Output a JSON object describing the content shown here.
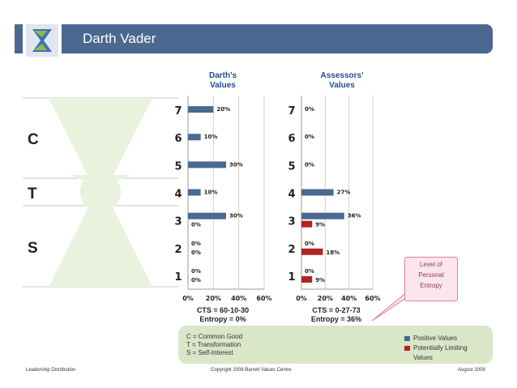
{
  "header": {
    "title": "Darth Vader"
  },
  "diagram": {
    "labels": [
      "C",
      "T",
      "S"
    ]
  },
  "charts": [
    {
      "title_line1": "Darth's",
      "title_line2": "Values",
      "levels": [
        "7",
        "6",
        "5",
        "4",
        "3",
        "2",
        "1"
      ],
      "rows": [
        {
          "level": "7",
          "pos": 20,
          "lim": null,
          "pos_label": "20%",
          "lim_label": ""
        },
        {
          "level": "6",
          "pos": 10,
          "lim": null,
          "pos_label": "10%",
          "lim_label": ""
        },
        {
          "level": "5",
          "pos": 30,
          "lim": null,
          "pos_label": "30%",
          "lim_label": ""
        },
        {
          "level": "4",
          "pos": 10,
          "lim": null,
          "pos_label": "10%",
          "lim_label": ""
        },
        {
          "level": "3",
          "pos": 30,
          "lim": 0,
          "pos_label": "30%",
          "lim_label": "0%"
        },
        {
          "level": "2",
          "pos": 0,
          "lim": 0,
          "pos_label": "0%",
          "lim_label": "0%"
        },
        {
          "level": "1",
          "pos": 0,
          "lim": 0,
          "pos_label": "0%",
          "lim_label": "0%"
        }
      ],
      "ticks": [
        "0%",
        "20%",
        "40%",
        "60%"
      ],
      "cts_line1": "CTS = 60-10-30",
      "cts_line2": "Entropy = 0%"
    },
    {
      "title_line1": "Assessors'",
      "title_line2": "Values",
      "levels": [
        "7",
        "6",
        "5",
        "4",
        "3",
        "2",
        "1"
      ],
      "rows": [
        {
          "level": "7",
          "pos": 0,
          "lim": null,
          "pos_label": "0%",
          "lim_label": ""
        },
        {
          "level": "6",
          "pos": 0,
          "lim": null,
          "pos_label": "0%",
          "lim_label": ""
        },
        {
          "level": "5",
          "pos": 0,
          "lim": null,
          "pos_label": "0%",
          "lim_label": ""
        },
        {
          "level": "4",
          "pos": 27,
          "lim": null,
          "pos_label": "27%",
          "lim_label": ""
        },
        {
          "level": "3",
          "pos": 36,
          "lim": 9,
          "pos_label": "36%",
          "lim_label": "9%"
        },
        {
          "level": "2",
          "pos": 0,
          "lim": 18,
          "pos_label": "0%",
          "lim_label": "18%"
        },
        {
          "level": "1",
          "pos": 0,
          "lim": 9,
          "pos_label": "0%",
          "lim_label": "9%"
        }
      ],
      "ticks": [
        "0%",
        "20%",
        "40%",
        "60%"
      ],
      "cts_line1": "CTS = 0-27-73",
      "cts_line2": "Entropy = 36%"
    }
  ],
  "chart_data": [
    {
      "type": "bar",
      "title": "Darth's Values",
      "categories": [
        "7",
        "6",
        "5",
        "4",
        "3",
        "2",
        "1"
      ],
      "series": [
        {
          "name": "Positive Values",
          "values": [
            20,
            10,
            30,
            10,
            30,
            0,
            0
          ]
        },
        {
          "name": "Potentially Limiting Values",
          "values": [
            null,
            null,
            null,
            null,
            0,
            0,
            0
          ]
        }
      ],
      "xlim": [
        0,
        60
      ]
    },
    {
      "type": "bar",
      "title": "Assessors' Values",
      "categories": [
        "7",
        "6",
        "5",
        "4",
        "3",
        "2",
        "1"
      ],
      "series": [
        {
          "name": "Positive Values",
          "values": [
            0,
            0,
            0,
            27,
            36,
            0,
            0
          ]
        },
        {
          "name": "Potentially Limiting Values",
          "values": [
            null,
            null,
            null,
            null,
            9,
            18,
            9
          ]
        }
      ],
      "xlim": [
        0,
        60
      ]
    }
  ],
  "legend": {
    "c": "C = Common Good",
    "t": "T = Transformation",
    "s": "S = Self-Interest",
    "positive": "Positive Values",
    "limiting_line1": "Potentially Limiting",
    "limiting_line2": "Values",
    "positive_color": "#4a6890",
    "limiting_color": "#b22222"
  },
  "callout": {
    "line1": "Level of",
    "line2": "Personal",
    "line3": "Entropy"
  },
  "footer": {
    "left": "Leadership Distribution",
    "center": "Copyright 2008 Barrett Values Centre",
    "right": "August 2008"
  }
}
